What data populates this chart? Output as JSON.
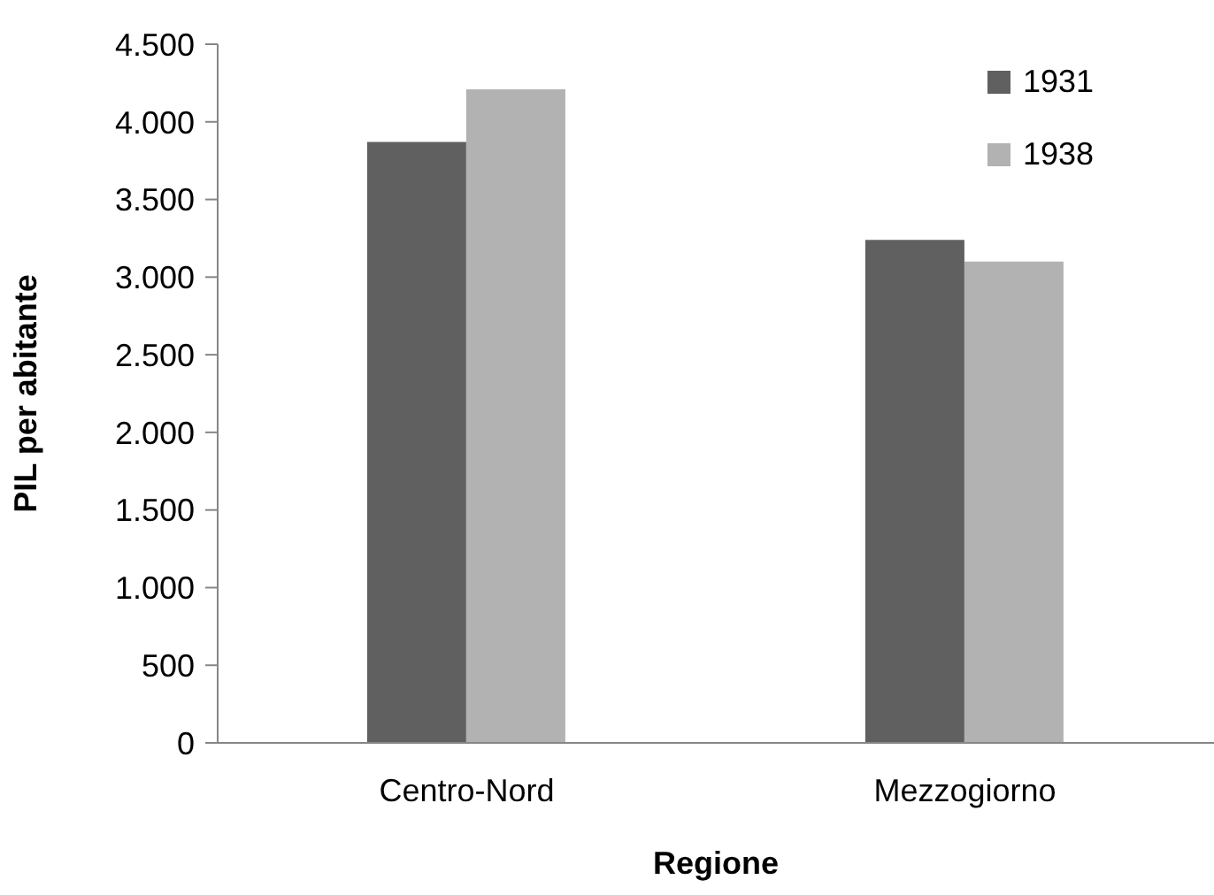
{
  "chart_data": {
    "type": "bar",
    "xlabel": "Regione",
    "ylabel": "PIL per abitante",
    "categories": [
      "Centro-Nord",
      "Mezzogiorno"
    ],
    "series": [
      {
        "name": "1931",
        "color": "#606060",
        "values": [
          3870,
          3240
        ]
      },
      {
        "name": "1938",
        "color": "#b2b2b2",
        "values": [
          4210,
          3100
        ]
      }
    ],
    "ylim": [
      0,
      4500
    ],
    "yticks": [
      0,
      500,
      {
        "value": 1000,
        "label": "1.000"
      },
      {
        "value": 1500,
        "label": "1.500"
      },
      {
        "value": 2000,
        "label": "2.000"
      },
      {
        "value": 2500,
        "label": "2.500"
      },
      {
        "value": 3000,
        "label": "3.000"
      },
      {
        "value": 3500,
        "label": "3.500"
      },
      {
        "value": 4000,
        "label": "4.000"
      },
      {
        "value": 4500,
        "label": "4.500"
      }
    ],
    "grid": false,
    "legend": "top right"
  }
}
